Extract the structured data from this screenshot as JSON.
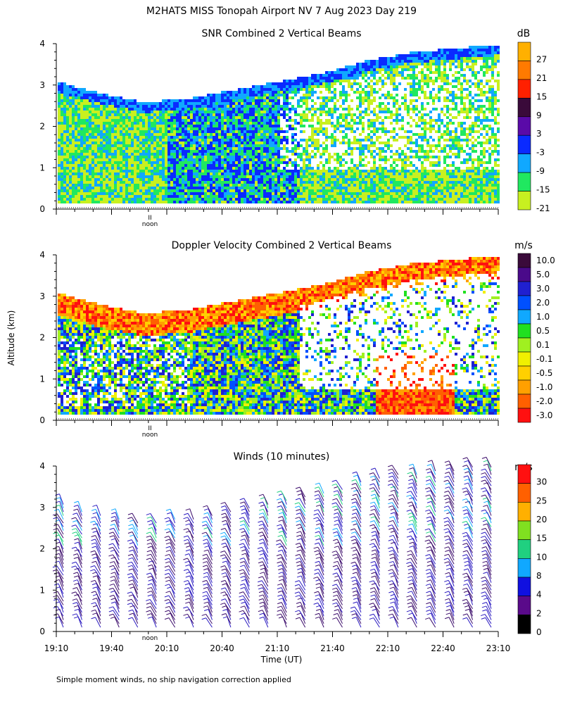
{
  "title": "M2HATS MISS Tonopah Airport NV   7 Aug 2023 Day 219",
  "footnote": "Simple moment winds, no ship navigation correction applied",
  "ylabel": "Altitude (km)",
  "xlabel": "Time (UT)",
  "noon_label": "noon",
  "noon_marker": "II",
  "colors": {
    "background": "#ffffff",
    "axis": "#000000",
    "baseline_dots": "#000000"
  },
  "chart_data": [
    {
      "type": "heatmap",
      "title": "SNR Combined 2 Vertical Beams",
      "units": "dB",
      "ylim": [
        0,
        4
      ],
      "yticks": [
        "0",
        "1",
        "2",
        "3",
        "4"
      ],
      "x_range": [
        "19:10",
        "23:10"
      ],
      "colorbar": {
        "labels": [
          "27",
          "21",
          "15",
          "9",
          "3",
          "-3",
          "-9",
          "-15",
          "-21"
        ],
        "colors": [
          "#ffb000",
          "#ff7a00",
          "#ff2000",
          "#3a0a3a",
          "#5a0aa8",
          "#0a2aff",
          "#10a8ff",
          "#20e860",
          "#c8f020"
        ]
      },
      "description_values": {
        "low_snr_boundary_km_start": 3.0,
        "boundary_layer_top_km": [
          3.0,
          2.7,
          2.5,
          2.6,
          2.8,
          3.0,
          3.2,
          3.5,
          3.7,
          3.8,
          3.9
        ]
      }
    },
    {
      "type": "heatmap",
      "title": "Doppler Velocity Combined 2 Vertical Beams",
      "units": "m/s",
      "ylim": [
        0,
        4
      ],
      "yticks": [
        "0",
        "1",
        "2",
        "3",
        "4"
      ],
      "x_range": [
        "19:10",
        "23:10"
      ],
      "colorbar": {
        "labels": [
          "10.0",
          "5.0",
          "3.0",
          "2.0",
          "1.0",
          "0.5",
          "0.1",
          "-0.1",
          "-0.5",
          "-1.0",
          "-2.0",
          "-3.0"
        ],
        "colors": [
          "#3a0a3a",
          "#4a0a8a",
          "#2020d0",
          "#0050ff",
          "#10a8ff",
          "#20e020",
          "#a0f020",
          "#f0f000",
          "#ffd000",
          "#ffa000",
          "#ff6000",
          "#ff1010"
        ]
      }
    },
    {
      "type": "wind_barbs",
      "title": "Winds (10 minutes)",
      "units": "m/s",
      "ylim": [
        0,
        4
      ],
      "yticks": [
        "0",
        "1",
        "2",
        "3",
        "4"
      ],
      "xticks": [
        "19:10",
        "19:40",
        "20:10",
        "20:40",
        "21:10",
        "21:40",
        "22:10",
        "22:40",
        "23:10"
      ],
      "colorbar": {
        "labels": [
          "30",
          "25",
          "20",
          "15",
          "10",
          "8",
          "4",
          "2",
          "0"
        ],
        "colors": [
          "#ff1010",
          "#ff6000",
          "#ffb000",
          "#80e020",
          "#20d080",
          "#10a8ff",
          "#1010e0",
          "#5a0a8a",
          "#000000"
        ]
      },
      "profiles_count": 24
    }
  ]
}
